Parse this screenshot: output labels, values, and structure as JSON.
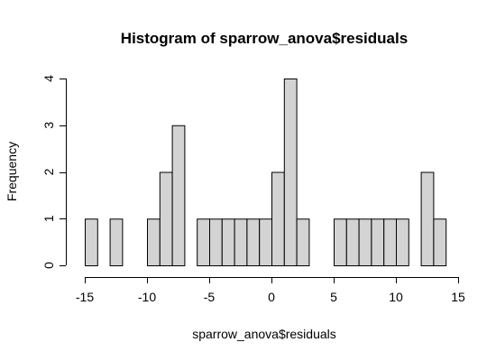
{
  "chart_data": {
    "type": "bar",
    "title": "Histogram of sparrow_anova$residuals",
    "xlabel": "sparrow_anova$residuals",
    "ylabel": "Frequency",
    "bin_width": 1,
    "bin_starts": [
      -15,
      -14,
      -13,
      -12,
      -11,
      -10,
      -9,
      -8,
      -7,
      -6,
      -5,
      -4,
      -3,
      -2,
      -1,
      0,
      1,
      2,
      3,
      4,
      5,
      6,
      7,
      8,
      9,
      10,
      11,
      12,
      13
    ],
    "values": [
      1,
      0,
      1,
      0,
      0,
      1,
      2,
      3,
      0,
      1,
      1,
      1,
      1,
      1,
      1,
      2,
      4,
      1,
      0,
      0,
      1,
      1,
      1,
      1,
      1,
      1,
      0,
      2,
      1
    ],
    "xlim": [
      -15,
      15
    ],
    "ylim": [
      0,
      4
    ],
    "x_ticks": [
      -15,
      -10,
      -5,
      0,
      5,
      10,
      15
    ],
    "y_ticks": [
      0,
      1,
      2,
      3,
      4
    ],
    "grid": false,
    "bar_color": "#d3d3d3"
  }
}
